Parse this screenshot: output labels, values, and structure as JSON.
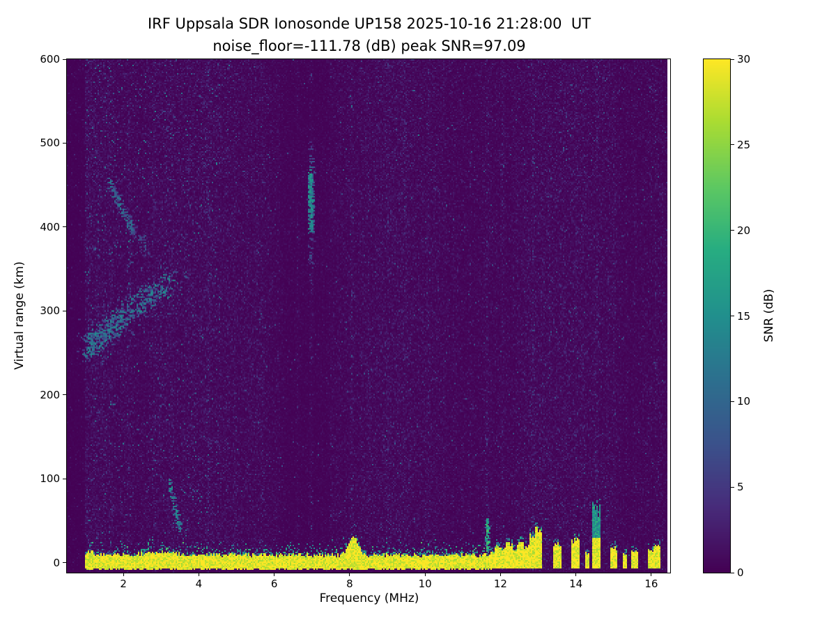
{
  "chart_data": {
    "type": "heatmap",
    "title": "IRF Uppsala SDR Ionosonde UP158 2025-10-16 21:28:00  UT",
    "subtitle": "noise_floor=-111.78 (dB) peak SNR=97.09",
    "station": "UP158",
    "timestamp_ut": "2025-10-16 21:28:00",
    "noise_floor_db": -111.78,
    "peak_snr_db": 97.09,
    "xlabel": "Frequency (MHz)",
    "ylabel": "Virtual range (km)",
    "xlim": [
      0.5,
      16.5
    ],
    "ylim": [
      -12,
      600
    ],
    "xticks": [
      2,
      4,
      6,
      8,
      10,
      12,
      14,
      16
    ],
    "yticks": [
      0,
      100,
      200,
      300,
      400,
      500,
      600
    ],
    "grid": false,
    "colorbar": {
      "label": "SNR (dB)",
      "min": 0,
      "max": 30,
      "ticks": [
        0,
        5,
        10,
        15,
        20,
        25,
        30
      ],
      "colormap": "viridis"
    },
    "colormap_stops": [
      [
        0.0,
        68,
        1,
        84
      ],
      [
        0.13,
        71,
        45,
        123
      ],
      [
        0.25,
        59,
        82,
        139
      ],
      [
        0.38,
        44,
        113,
        142
      ],
      [
        0.5,
        33,
        144,
        141
      ],
      [
        0.63,
        39,
        173,
        129
      ],
      [
        0.75,
        92,
        200,
        99
      ],
      [
        0.88,
        170,
        220,
        50
      ],
      [
        1.0,
        253,
        231,
        37
      ]
    ],
    "features": {
      "data_freq_extent_mhz": [
        0.98,
        16.42
      ],
      "ground_echo_band": {
        "freq_range": [
          0.98,
          11.78
        ],
        "range_km": [
          -8,
          9
        ],
        "snr_db": 30,
        "fuzz_km": 18,
        "thick_blobs": [
          {
            "f": 8.1,
            "extra_km": 22,
            "sigma": 0.16
          },
          {
            "f": 1.1,
            "extra_km": 5,
            "sigma": 0.12
          },
          {
            "f": 3.0,
            "extra_km": 4,
            "sigma": 0.5
          }
        ]
      },
      "ground_echo_blobs": [
        {
          "f": 11.82,
          "top_km": 14,
          "w": 0.06
        },
        {
          "f": 11.95,
          "top_km": 20,
          "w": 0.07
        },
        {
          "f": 12.1,
          "top_km": 16,
          "w": 0.06
        },
        {
          "f": 12.24,
          "top_km": 22,
          "w": 0.07
        },
        {
          "f": 12.38,
          "top_km": 16,
          "w": 0.06
        },
        {
          "f": 12.52,
          "top_km": 24,
          "w": 0.07
        },
        {
          "f": 12.68,
          "top_km": 18,
          "w": 0.06
        },
        {
          "f": 12.86,
          "top_km": 30,
          "w": 0.08
        },
        {
          "f": 13.0,
          "top_km": 42,
          "w": 0.08
        },
        {
          "f": 13.5,
          "top_km": 22,
          "w": 0.09
        },
        {
          "f": 14.0,
          "top_km": 26,
          "w": 0.09
        },
        {
          "f": 14.3,
          "top_km": 12,
          "w": 0.05
        },
        {
          "f": 14.55,
          "top_km": 62,
          "w": 0.09,
          "teal_above_km": 30
        },
        {
          "f": 15.0,
          "top_km": 18,
          "w": 0.08
        },
        {
          "f": 15.3,
          "top_km": 10,
          "w": 0.05
        },
        {
          "f": 15.55,
          "top_km": 14,
          "w": 0.07
        },
        {
          "f": 16.0,
          "top_km": 16,
          "w": 0.08
        },
        {
          "f": 16.15,
          "top_km": 20,
          "w": 0.06
        }
      ],
      "echo_traces": [
        {
          "name": "f-region-main-trace",
          "points": [
            [
              1.05,
              258
            ],
            [
              1.4,
              268
            ],
            [
              1.8,
              285
            ],
            [
              2.2,
              302
            ],
            [
              2.7,
              318
            ],
            [
              3.3,
              332
            ]
          ],
          "n": 620,
          "f_jitter": 0.13,
          "r_jitter": 14,
          "snr": [
            4,
            15
          ],
          "bias": 1.35
        },
        {
          "name": "f-region-halo",
          "points": [
            [
              1.1,
              262
            ],
            [
              2.2,
              300
            ],
            [
              3.4,
              330
            ]
          ],
          "n": 200,
          "f_jitter": 0.35,
          "r_jitter": 30,
          "snr": [
            3,
            8
          ],
          "bias": 1.2
        },
        {
          "name": "upper-descending-trace",
          "points": [
            [
              1.62,
              452
            ],
            [
              1.85,
              432
            ],
            [
              2.05,
              414
            ],
            [
              2.25,
              396
            ]
          ],
          "n": 150,
          "f_jitter": 0.05,
          "r_jitter": 8,
          "snr": [
            4,
            13
          ],
          "bias": 1.0
        },
        {
          "name": "upper-trace-extension",
          "points": [
            [
              2.25,
              396
            ],
            [
              2.6,
              372
            ]
          ],
          "n": 40,
          "f_jitter": 0.07,
          "r_jitter": 10,
          "snr": [
            3,
            8
          ],
          "bias": 1.0
        },
        {
          "name": "low-descending-trace-3.4MHz",
          "points": [
            [
              3.2,
              95
            ],
            [
              3.32,
              75
            ],
            [
              3.42,
              55
            ],
            [
              3.5,
              36
            ]
          ],
          "n": 90,
          "f_jitter": 0.04,
          "r_jitter": 7,
          "snr": [
            5,
            16
          ],
          "bias": 1.0
        },
        {
          "name": "teal-streak-7MHz",
          "points": [
            [
              6.97,
              396
            ],
            [
              6.97,
              430
            ],
            [
              6.97,
              464
            ]
          ],
          "n": 230,
          "f_jitter": 0.05,
          "r_jitter": 8,
          "snr": [
            8,
            17
          ],
          "bias": 1.0
        },
        {
          "name": "teal-streak-7MHz-halo",
          "points": [
            [
              6.97,
              350
            ],
            [
              6.97,
              500
            ]
          ],
          "n": 70,
          "f_jitter": 0.08,
          "r_jitter": 12,
          "snr": [
            3,
            9
          ],
          "bias": 1.0
        },
        {
          "name": "green-spike-11.65MHz",
          "points": [
            [
              11.65,
              12
            ],
            [
              11.65,
              50
            ]
          ],
          "n": 90,
          "f_jitter": 0.03,
          "r_jitter": 6,
          "snr": [
            10,
            22
          ],
          "bias": 1.0
        }
      ],
      "interference_lines": [
        {
          "f": 1.3,
          "strength": 0.25
        },
        {
          "f": 1.65,
          "strength": 0.3
        },
        {
          "f": 2.15,
          "strength": 0.25
        },
        {
          "f": 2.5,
          "strength": 0.22
        },
        {
          "f": 2.8,
          "strength": 0.3
        },
        {
          "f": 3.3,
          "strength": 0.28
        },
        {
          "f": 3.75,
          "strength": 0.25
        },
        {
          "f": 4.25,
          "strength": 0.55
        },
        {
          "f": 4.6,
          "strength": 0.25
        },
        {
          "f": 4.95,
          "strength": 0.3
        },
        {
          "f": 5.3,
          "strength": 0.22
        },
        {
          "f": 5.7,
          "strength": 0.35
        },
        {
          "f": 6.1,
          "strength": 0.3
        },
        {
          "f": 6.6,
          "strength": 0.25
        },
        {
          "f": 6.97,
          "strength": 0.5
        },
        {
          "f": 7.5,
          "strength": 0.3
        },
        {
          "f": 8.05,
          "strength": 0.55
        },
        {
          "f": 8.5,
          "strength": 0.3
        },
        {
          "f": 9.0,
          "strength": 0.35
        },
        {
          "f": 9.45,
          "strength": 0.3
        },
        {
          "f": 10.1,
          "strength": 0.35
        },
        {
          "f": 10.55,
          "strength": 0.25
        },
        {
          "f": 11.2,
          "strength": 0.4
        },
        {
          "f": 11.65,
          "strength": 0.5
        },
        {
          "f": 12.05,
          "strength": 0.35
        },
        {
          "f": 12.45,
          "strength": 0.3
        },
        {
          "f": 12.86,
          "strength": 0.55
        },
        {
          "f": 13.3,
          "strength": 0.25
        },
        {
          "f": 14.0,
          "strength": 0.35
        },
        {
          "f": 14.55,
          "strength": 0.45
        },
        {
          "f": 15.0,
          "strength": 0.3
        },
        {
          "f": 15.55,
          "strength": 0.25
        },
        {
          "f": 16.1,
          "strength": 0.35
        }
      ]
    }
  }
}
